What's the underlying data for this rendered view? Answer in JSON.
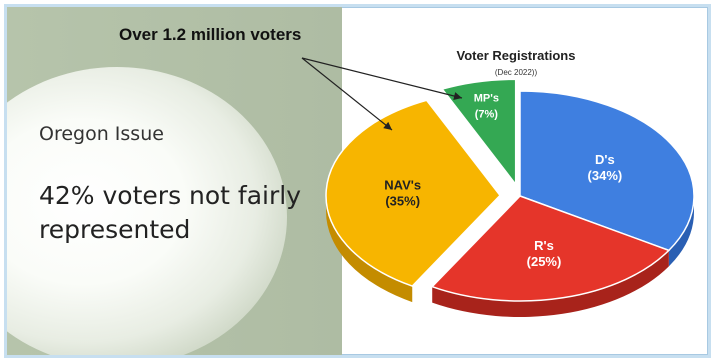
{
  "left_panel": {
    "callout": "Over 1.2 million voters",
    "issue_title": "Oregon Issue",
    "issue_stat": "42% voters not fairly represented"
  },
  "chart_data": {
    "type": "pie",
    "title": "Voter Registrations",
    "subtitle": "(Dec 2022))",
    "slices": [
      {
        "label": "D's",
        "value": 34,
        "value_label": "(34%)",
        "color": "#3f7fe0",
        "side_color": "#2a5fb3"
      },
      {
        "label": "R's",
        "value": 25,
        "value_label": "(25%)",
        "color": "#e5352a",
        "side_color": "#a8231b"
      },
      {
        "label": "NAV's",
        "value": 35,
        "value_label": "(35%)",
        "color": "#f7b500",
        "side_color": "#c48c00"
      },
      {
        "label": "MP's",
        "value": 7,
        "value_label": "(7%)",
        "color": "#34a853",
        "side_color": "#237a3a"
      }
    ],
    "exploded": [
      "NAV's",
      "MP's"
    ],
    "perspective": "3d-tilted"
  }
}
